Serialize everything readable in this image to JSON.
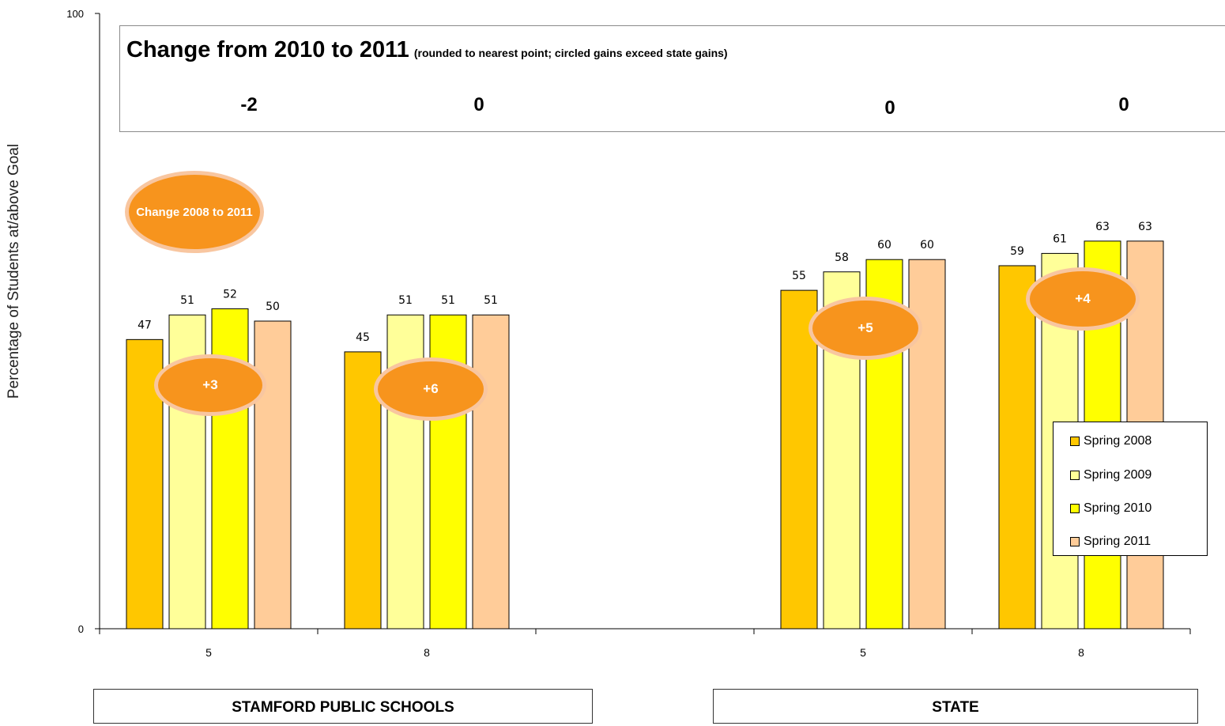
{
  "chart_data": {
    "type": "bar",
    "ylabel": "Percentage of Students at/above Goal",
    "ylim": [
      0,
      100
    ],
    "yticks": [
      "0",
      "100"
    ],
    "categories": [
      "5",
      "8",
      "5",
      "8"
    ],
    "groups": [
      {
        "name": "STAMFORD PUBLIC SCHOOLS",
        "categories": [
          "5",
          "8"
        ]
      },
      {
        "name": "STATE",
        "categories": [
          "5",
          "8"
        ]
      }
    ],
    "series": [
      {
        "name": "Spring 2008",
        "color": "#FFC700",
        "values": [
          47,
          45,
          55,
          59
        ]
      },
      {
        "name": "Spring 2009",
        "color": "#FFFF99",
        "values": [
          51,
          51,
          58,
          61
        ]
      },
      {
        "name": "Spring 2010",
        "color": "#FFFF00",
        "values": [
          52,
          51,
          60,
          63
        ]
      },
      {
        "name": "Spring 2011",
        "color": "#FFCC99",
        "values": [
          50,
          51,
          60,
          63
        ]
      }
    ],
    "change_box": {
      "title": "Change from 2010 to 2011",
      "note": "(rounded to nearest point; circled gains exceed state gains)",
      "values": [
        "-2",
        "0",
        "0",
        "0"
      ]
    },
    "badges": {
      "key_label": "Change 2008 to 2011",
      "values": [
        "+3",
        "+6",
        "+5",
        "+4"
      ]
    },
    "legend_position": "right",
    "grid": false
  }
}
